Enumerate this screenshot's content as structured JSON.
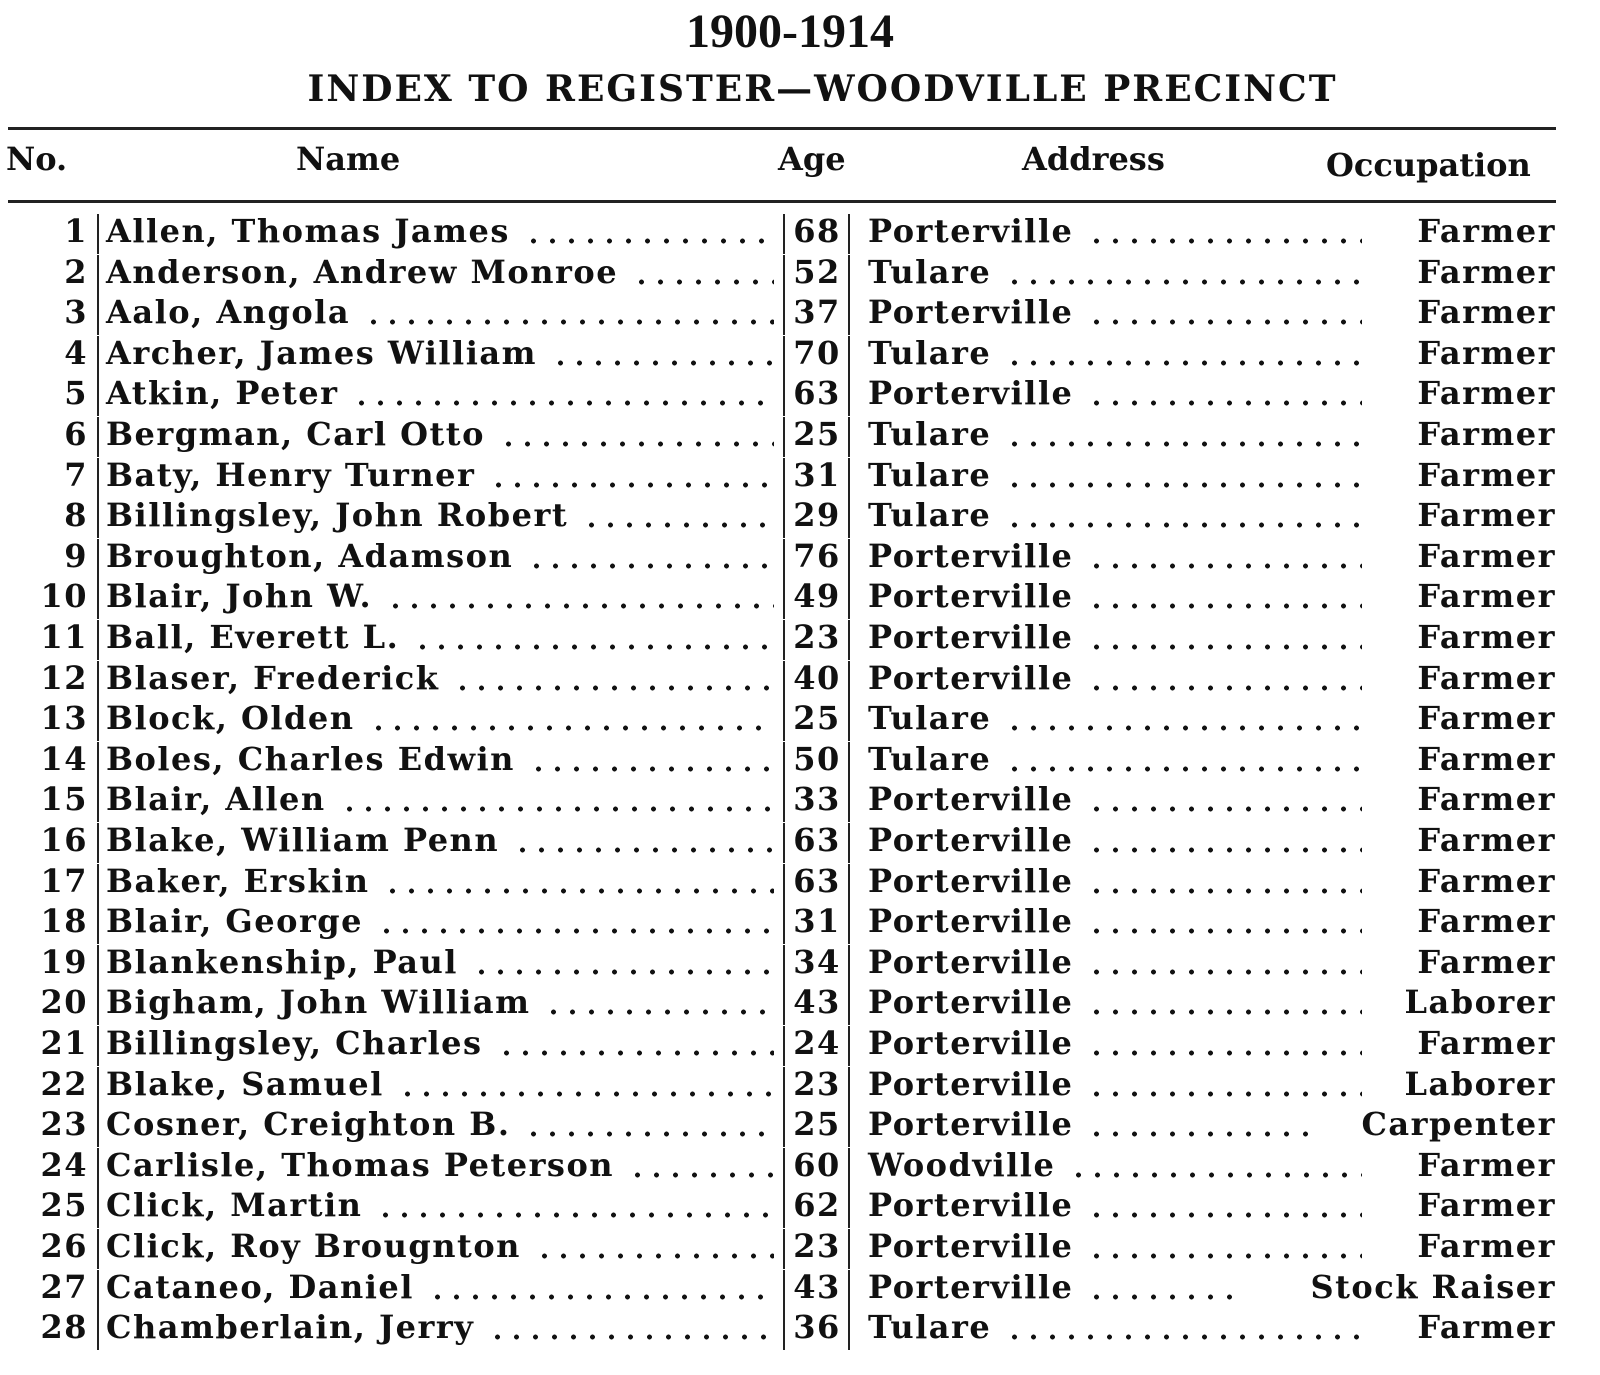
{
  "title": "1900-1914",
  "subtitle": "INDEX TO REGISTER—WOODVILLE PRECINCT",
  "headers": {
    "no": "No.",
    "name": "Name",
    "age": "Age",
    "address": "Address",
    "occupation": "Occupation"
  },
  "rows": [
    {
      "no": "1",
      "name": "Allen, Thomas James",
      "age": "68",
      "address": "Porterville",
      "occupation": "Farmer"
    },
    {
      "no": "2",
      "name": "Anderson, Andrew Monroe",
      "age": "52",
      "address": "Tulare",
      "occupation": "Farmer"
    },
    {
      "no": "3",
      "name": "Aalo, Angola",
      "age": "37",
      "address": "Porterville",
      "occupation": "Farmer"
    },
    {
      "no": "4",
      "name": "Archer, James William",
      "age": "70",
      "address": "Tulare",
      "occupation": "Farmer"
    },
    {
      "no": "5",
      "name": "Atkin, Peter",
      "age": "63",
      "address": "Porterville",
      "occupation": "Farmer"
    },
    {
      "no": "6",
      "name": "Bergman, Carl Otto",
      "age": "25",
      "address": "Tulare",
      "occupation": "Farmer"
    },
    {
      "no": "7",
      "name": "Baty, Henry Turner",
      "age": "31",
      "address": "Tulare",
      "occupation": "Farmer"
    },
    {
      "no": "8",
      "name": "Billingsley, John Robert",
      "age": "29",
      "address": "Tulare",
      "occupation": "Farmer"
    },
    {
      "no": "9",
      "name": "Broughton, Adamson",
      "age": "76",
      "address": "Porterville",
      "occupation": "Farmer"
    },
    {
      "no": "10",
      "name": "Blair, John W.",
      "age": "49",
      "address": "Porterville",
      "occupation": "Farmer"
    },
    {
      "no": "11",
      "name": "Ball, Everett L.",
      "age": "23",
      "address": "Porterville",
      "occupation": "Farmer"
    },
    {
      "no": "12",
      "name": "Blaser, Frederick",
      "age": "40",
      "address": "Porterville",
      "occupation": "Farmer"
    },
    {
      "no": "13",
      "name": "Block, Olden",
      "age": "25",
      "address": "Tulare",
      "occupation": "Farmer"
    },
    {
      "no": "14",
      "name": "Boles, Charles Edwin",
      "age": "50",
      "address": "Tulare",
      "occupation": "Farmer"
    },
    {
      "no": "15",
      "name": "Blair, Allen",
      "age": "33",
      "address": "Porterville",
      "occupation": "Farmer"
    },
    {
      "no": "16",
      "name": "Blake, William Penn",
      "age": "63",
      "address": "Porterville",
      "occupation": "Farmer"
    },
    {
      "no": "17",
      "name": "Baker, Erskin",
      "age": "63",
      "address": "Porterville",
      "occupation": "Farmer"
    },
    {
      "no": "18",
      "name": "Blair, George",
      "age": "31",
      "address": "Porterville",
      "occupation": "Farmer"
    },
    {
      "no": "19",
      "name": "Blankenship, Paul",
      "age": "34",
      "address": "Porterville",
      "occupation": "Farmer"
    },
    {
      "no": "20",
      "name": "Bigham, John William",
      "age": "43",
      "address": "Porterville",
      "occupation": "Laborer"
    },
    {
      "no": "21",
      "name": "Billingsley, Charles",
      "age": "24",
      "address": "Porterville",
      "occupation": "Farmer"
    },
    {
      "no": "22",
      "name": "Blake, Samuel",
      "age": "23",
      "address": "Porterville",
      "occupation": "Laborer"
    },
    {
      "no": "23",
      "name": "Cosner, Creighton B.",
      "age": "25",
      "address": "Porterville",
      "occupation": "Carpenter"
    },
    {
      "no": "24",
      "name": "Carlisle, Thomas Peterson",
      "age": "60",
      "address": "Woodville",
      "occupation": "Farmer"
    },
    {
      "no": "25",
      "name": "Click, Martin",
      "age": "62",
      "address": "Porterville",
      "occupation": "Farmer"
    },
    {
      "no": "26",
      "name": "Click, Roy Brougnton",
      "age": "23",
      "address": "Porterville",
      "occupation": "Farmer"
    },
    {
      "no": "27",
      "name": "Cataneo, Daniel",
      "age": "43",
      "address": "Porterville",
      "occupation": "Stock Raiser"
    },
    {
      "no": "28",
      "name": "Chamberlain, Jerry",
      "age": "36",
      "address": "Tulare",
      "occupation": "Farmer"
    }
  ]
}
